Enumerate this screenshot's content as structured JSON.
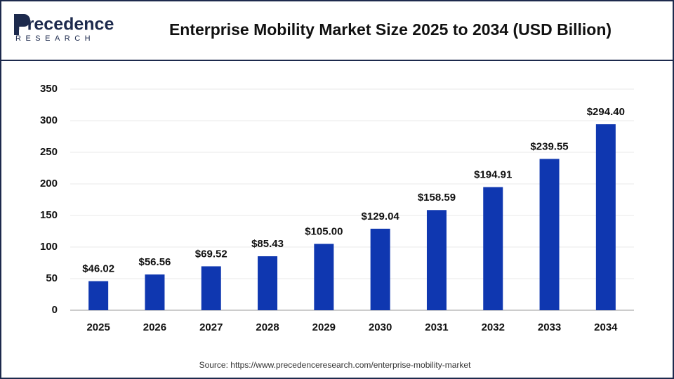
{
  "logo": {
    "name": "Precedence",
    "tagline": "RESEARCH"
  },
  "chart_data": {
    "type": "bar",
    "title": "Enterprise Mobility Market Size 2025 to 2034 (USD Billion)",
    "categories": [
      "2025",
      "2026",
      "2027",
      "2028",
      "2029",
      "2030",
      "2031",
      "2032",
      "2033",
      "2034"
    ],
    "values": [
      46.02,
      56.56,
      69.52,
      85.43,
      105.0,
      129.04,
      158.59,
      194.91,
      239.55,
      294.4
    ],
    "value_labels": [
      "$46.02",
      "$56.56",
      "$69.52",
      "$85.43",
      "$105.00",
      "$129.04",
      "$158.59",
      "$194.91",
      "$239.55",
      "$294.40"
    ],
    "color": "#0f37b0",
    "ylim": [
      0,
      350
    ],
    "yticks": [
      0,
      50,
      100,
      150,
      200,
      250,
      300,
      350
    ],
    "grid": true,
    "source": "Source: https://www.precedenceresearch.com/enterprise-mobility-market"
  }
}
